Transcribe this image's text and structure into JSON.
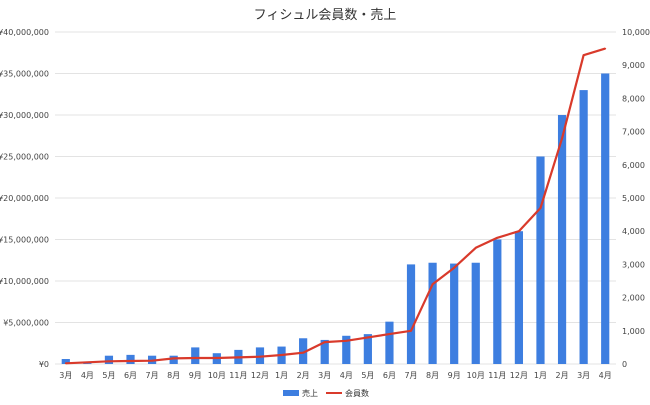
{
  "chart_data": {
    "type": "bar",
    "title": "フィシュル会員数・売上",
    "categories": [
      "3月",
      "4月",
      "5月",
      "6月",
      "7月",
      "8月",
      "9月",
      "10月",
      "11月",
      "12月",
      "1月",
      "2月",
      "3月",
      "4月",
      "5月",
      "6月",
      "7月",
      "8月",
      "9月",
      "10月",
      "11月",
      "12月",
      "1月",
      "2月",
      "3月",
      "4月"
    ],
    "series": [
      {
        "name": "売上",
        "type": "bar",
        "axis": "left",
        "color": "#3d7ee0",
        "values": [
          600000,
          100000,
          1000000,
          1100000,
          1000000,
          1000000,
          2000000,
          1300000,
          1700000,
          2000000,
          2100000,
          3100000,
          2900000,
          3400000,
          3600000,
          5100000,
          12000000,
          12200000,
          12100000,
          12200000,
          15000000,
          16000000,
          25000000,
          30000000,
          33000000,
          35000000
        ]
      },
      {
        "name": "会員数",
        "type": "line",
        "axis": "right",
        "color": "#d93a2b",
        "values": [
          20,
          50,
          80,
          90,
          100,
          170,
          180,
          180,
          200,
          220,
          270,
          340,
          660,
          700,
          800,
          900,
          1000,
          2400,
          2900,
          3500,
          3800,
          4000,
          4700,
          6800,
          9300,
          9500
        ]
      }
    ],
    "y_left": {
      "ylim": [
        0,
        40000000
      ],
      "ticks": [
        "¥0",
        "¥5,000,000",
        "¥10,000,000",
        "¥15,000,000",
        "¥20,000,000",
        "¥25,000,000",
        "¥30,000,000",
        "¥35,000,000",
        "¥40,000,000"
      ]
    },
    "y_right": {
      "ylim": [
        0,
        10000
      ],
      "ticks": [
        "0",
        "1,000",
        "2,000",
        "3,000",
        "4,000",
        "5,000",
        "6,000",
        "7,000",
        "8,000",
        "9,000",
        "10,000"
      ]
    },
    "grid": true,
    "legend_position": "bottom-center"
  }
}
